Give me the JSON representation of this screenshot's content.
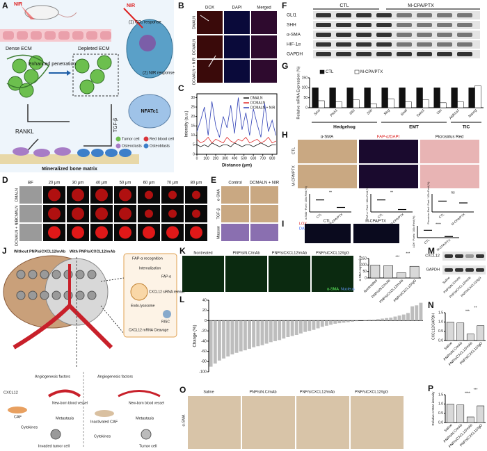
{
  "A": {
    "label": "A",
    "nir_mouse": "NIR",
    "nir_cell": "NIR",
    "co2_response": "(1) CO₂ response",
    "nir_response": "(2) NIR response",
    "dense_ecm": "Dense ECM",
    "enhanced_penetration": "Enhanced penetration",
    "depleted_ecm": "Depleted ECM",
    "rankl": "RANKL",
    "tgf_beta": "TGF-β",
    "nfatc1": "NFATc1",
    "bone_matrix": "Mineralized bone matrix",
    "legend": [
      {
        "name": "Tumor cell",
        "color": "#6cbf4e"
      },
      {
        "name": "Red blood cell",
        "color": "#d9343a"
      },
      {
        "name": "Osteoclasts",
        "color": "#a77cc6"
      },
      {
        "name": "Osteoblasts",
        "color": "#3d7fc9"
      }
    ]
  },
  "B": {
    "label": "B",
    "columns": [
      "DOX",
      "DAPI",
      "Merged"
    ],
    "rows": [
      "DMALN",
      "DCMALN",
      "DCMALN + NIR"
    ]
  },
  "C": {
    "label": "C",
    "type": "line",
    "x_label": "Distance (μm)",
    "y_label": "Intensity (a.u.)",
    "x": [
      0,
      40,
      80,
      120,
      160,
      200,
      240,
      280,
      320,
      360,
      400,
      440,
      480,
      520,
      560,
      600,
      640,
      680,
      720,
      760,
      800,
      840
    ],
    "xlim": [
      0,
      850
    ],
    "ylim": [
      0,
      32
    ],
    "xticks": [
      0,
      100,
      200,
      300,
      400,
      500,
      600,
      700,
      800
    ],
    "yticks": [
      0,
      5,
      10,
      15,
      20,
      25,
      30
    ],
    "series": [
      {
        "name": "DMALN",
        "color": "#111111",
        "values": [
          5,
          4,
          5,
          4,
          6,
          5,
          4,
          5,
          5,
          4,
          6,
          5,
          4,
          5,
          5,
          4,
          5,
          6,
          5,
          4,
          5,
          5
        ]
      },
      {
        "name": "DCMALN",
        "color": "#e02a2a",
        "values": [
          8,
          6,
          7,
          9,
          6,
          8,
          7,
          6,
          9,
          7,
          6,
          8,
          7,
          9,
          6,
          7,
          8,
          6,
          7,
          9,
          6,
          7
        ]
      },
      {
        "name": "DCMALN + NIR",
        "color": "#2e3fb5",
        "values": [
          12,
          18,
          25,
          10,
          28,
          15,
          9,
          20,
          14,
          26,
          11,
          30,
          13,
          22,
          10,
          24,
          16,
          9,
          27,
          12,
          18,
          10
        ]
      }
    ]
  },
  "D": {
    "label": "D",
    "columns": [
      "BF",
      "20 μm",
      "30 μm",
      "40 μm",
      "50 μm",
      "60 μm",
      "70 μm",
      "80 μm"
    ],
    "rows": [
      "DMALN",
      "DCMALN",
      "DCMALN + NIR"
    ]
  },
  "E": {
    "label": "E",
    "columns": [
      "Control",
      "DCMALN + NIR"
    ],
    "rows": [
      "α-SMA",
      "TGF-β",
      "Masson"
    ]
  },
  "F": {
    "label": "F",
    "groups": [
      "CTL",
      "M-CPA/PTX"
    ],
    "rows": [
      "GLI1",
      "SHH",
      "α-SMA",
      "HIF-1α",
      "GAPDH"
    ]
  },
  "G": {
    "label": "G",
    "type": "bar",
    "y_label": "Relative mRNA Expression (%)",
    "ylim": [
      0,
      150
    ],
    "yticks": [
      0,
      50,
      100,
      150
    ],
    "groups": [
      {
        "name": "Hedgehog",
        "categories": [
          "Smo",
          "Ptch1",
          "Gli1",
          "Shh"
        ]
      },
      {
        "name": "EMT",
        "categories": [
          "Slug",
          "Snail",
          "Twist1",
          "Vim"
        ]
      },
      {
        "name": "TIC",
        "categories": [
          "Aldh1a1",
          "Nanog"
        ]
      }
    ],
    "series": [
      {
        "name": "CTL",
        "color": "#111111",
        "values": [
          100,
          100,
          100,
          100,
          100,
          100,
          100,
          100,
          100,
          100
        ]
      },
      {
        "name": "M-CPA/PTX",
        "color": "#ffffff",
        "values": [
          35,
          30,
          40,
          20,
          45,
          30,
          40,
          25,
          30,
          110
        ]
      }
    ]
  },
  "H": {
    "label": "H",
    "columns": [
      "α-SMA",
      "FAP-α/DAPI",
      "Picrosirius Red"
    ],
    "rows": [
      "CTL",
      "M-CPA/PTX"
    ],
    "charts": [
      {
        "y_label": "α-SMA⁺ Pixel / 100x Field (%)",
        "categories": [
          "CTL",
          "M-CPA/PTX"
        ],
        "values": [
          4,
          1.5
        ],
        "ylim": [
          0,
          6
        ],
        "significance": "**"
      },
      {
        "y_label": "FAP-α⁺ Pixel / 100x Field (%)",
        "categories": [
          "CTL",
          "M-CPA/PTX"
        ],
        "values": [
          10,
          2
        ],
        "ylim": [
          0,
          15
        ],
        "significance": "**"
      },
      {
        "y_label": "Picrosirius Red⁺ Pixel / 100x Field (%)",
        "categories": [
          "CTL",
          "M-CPA/PTX"
        ],
        "values": [
          12,
          10
        ],
        "ylim": [
          0,
          20
        ],
        "significance": "ns"
      }
    ]
  },
  "I": {
    "label": "I",
    "stains": [
      "LOX",
      "DAPI"
    ],
    "columns": [
      "CTL",
      "M-CPA/PTX"
    ],
    "chart": {
      "y_label": "LOX⁺ Pixels / 100x Field (%)",
      "categories": [
        "CTL",
        "M-CPA/PTX"
      ],
      "values": [
        5,
        0.8
      ],
      "ylim": [
        0,
        8
      ],
      "significance": "****"
    }
  },
  "J": {
    "label": "J",
    "without": "Without PNP/siCXCL12/mAb",
    "with": "With PNP/siCXCL12/mAb",
    "fap_recognition": "FAP-α recognition",
    "internalization": "Internalization",
    "fap": "FAP-α",
    "sirna_release": "CXCL12 siRNA release",
    "endo_lysosome": "Endo-lysosome",
    "mrna_cleavage": "CXCL12 mRNA Cleavage",
    "risc": "RISC",
    "left_angiogenesis": "Angiogenesis factors",
    "left_vessel": "New-born blood vessel",
    "left_metastasis": "Metastasis",
    "cxcl12": "CXCL12",
    "caf": "CAF",
    "left_cytokines": "Cytokines",
    "invaded": "Invaded tumor cell",
    "right_angiogenesis": "Angiogenesis factors",
    "right_vessel": "New-born blood vessel",
    "right_metastasis": "Metastasis",
    "inactivated_caf": "Inactivated CAF",
    "right_cytokines": "Cytokines",
    "tumor_cell": "Tumor cell"
  },
  "K": {
    "label": "K",
    "images": [
      "Nontreated",
      "PNP/siN.C/mAb",
      "PNP/siCXCL12/mAb",
      "PNP/siCXCL12/IgG"
    ],
    "stains": [
      "α-SMA",
      "Nucleus"
    ],
    "chart": {
      "type": "bar",
      "y_label": "α-SMA expression",
      "categories": [
        "Nontreated",
        "PNP/siN.C/mAb",
        "PNP/siCXCL12/mAb",
        "PNP/siCXCL12/IgG"
      ],
      "values": [
        100,
        95,
        40,
        90
      ],
      "color": "#d9d9d9",
      "ylim": [
        0,
        150
      ],
      "yticks": [
        0,
        50,
        100,
        150
      ],
      "significance": [
        "***",
        "***"
      ]
    }
  },
  "L": {
    "label": "L",
    "type": "bar",
    "y_label": "Change (%)",
    "ylim": [
      -100,
      40
    ],
    "yticks": [
      -100,
      -80,
      -60,
      -40,
      -20,
      0,
      20,
      40
    ],
    "color": "#bdbdbd",
    "categories": [
      null,
      null,
      null,
      null,
      null,
      null,
      null,
      null,
      null,
      null,
      null,
      null,
      null,
      null,
      null,
      null,
      null,
      null,
      null,
      null,
      null,
      null,
      null,
      null,
      null,
      null,
      null,
      null,
      null,
      null,
      null,
      null,
      null,
      null,
      null,
      null,
      null,
      null,
      null,
      null,
      null,
      null,
      null,
      null,
      null,
      null,
      null,
      null,
      null,
      null
    ],
    "values": [
      -90,
      -84,
      -78,
      -74,
      -70,
      -66,
      -63,
      -60,
      -58,
      -55,
      -52,
      -50,
      -48,
      -45,
      -42,
      -40,
      -38,
      -35,
      -32,
      -30,
      -28,
      -25,
      -22,
      -20,
      -18,
      -15,
      -12,
      -10,
      -8,
      -6,
      -5,
      -4,
      -3,
      -2,
      -1,
      0,
      1,
      2,
      2,
      3,
      4,
      5,
      6,
      8,
      10,
      12,
      15,
      28,
      30,
      35
    ]
  },
  "M": {
    "label": "M",
    "rows": [
      "CXCL12",
      "GAPDH"
    ],
    "columns": [
      "Saline",
      "PNP/siN.C/mAb",
      "PNP/siCXCL12/mAb",
      "PNP/siCXCL12/IgG"
    ]
  },
  "N": {
    "label": "N",
    "type": "bar",
    "y_label": "CXCL12/GAPDH",
    "categories": [
      "Saline",
      "PNP/siN.C/mAb",
      "PNP/siCXCL12/mAb",
      "PNP/siCXCL12/IgG"
    ],
    "values": [
      1.0,
      0.95,
      0.35,
      0.8
    ],
    "color": "#d9d9d9",
    "ylim": [
      0,
      1.5
    ],
    "yticks": [
      {
        "value": 0,
        "label": "0.0"
      },
      0.5,
      {
        "value": 1,
        "label": "1.0"
      },
      1.5
    ],
    "significance": [
      "***",
      "**"
    ]
  },
  "O": {
    "label": "O",
    "images": [
      "Saline",
      "PNP/siN.C/mAb",
      "PNP/siCXCL12/mAb",
      "PNP/siCXCL12/IgG"
    ],
    "stain": "α-SMA"
  },
  "P": {
    "label": "P",
    "type": "bar",
    "y_label": "Relative α-SMA intensity",
    "categories": [
      "Saline",
      "PNP/siN.C/mAb",
      "PNP/siCXCL12/mAb",
      "PNP/siCXCL12/IgG"
    ],
    "values": [
      1.0,
      0.95,
      0.3,
      0.9
    ],
    "color": "#d9d9d9",
    "ylim": [
      0,
      1.5
    ],
    "yticks": [
      {
        "value": 0,
        "label": "0.0"
      },
      0.5,
      {
        "value": 1,
        "label": "1.0"
      },
      1.5
    ],
    "significance": [
      "****",
      "***"
    ]
  }
}
